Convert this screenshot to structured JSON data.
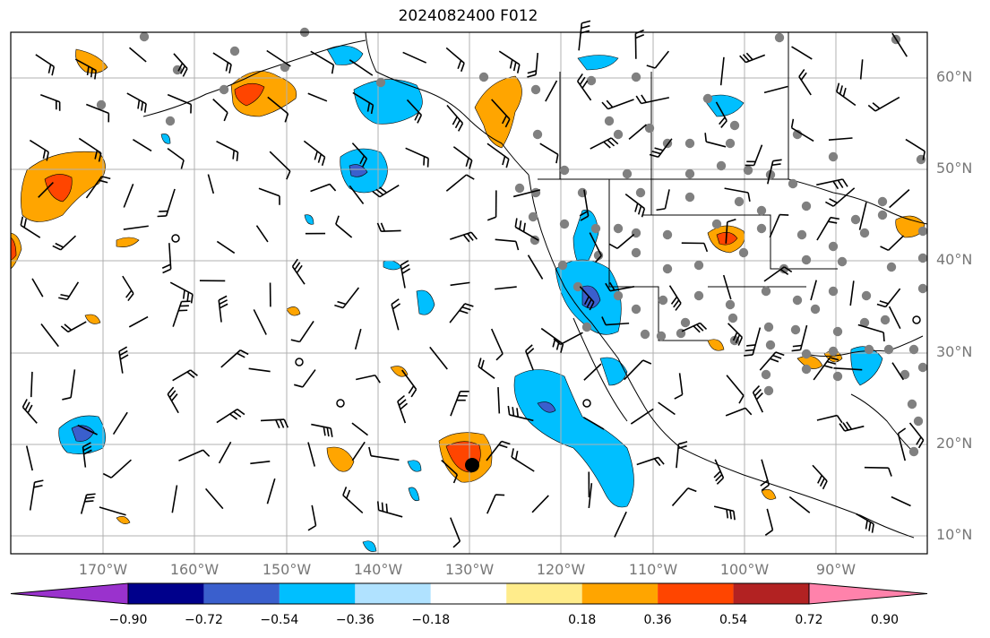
{
  "title": "2024082400 F012",
  "lat_labels": [
    "60°N",
    "50°N",
    "40°N",
    "30°N",
    "20°N",
    "10°N"
  ],
  "lon_labels": [
    "170°W",
    "160°W",
    "150°W",
    "140°W",
    "130°W",
    "120°W",
    "110°W",
    "100°W",
    "90°W"
  ],
  "colorbar": {
    "labels": [
      "−0.90",
      "−0.72",
      "−0.54",
      "−0.36",
      "−0.18",
      "0.18",
      "0.36",
      "0.54",
      "0.72",
      "0.90"
    ],
    "colors": [
      "#9a32cd",
      "#00008b",
      "#3a5fcd",
      "#00bfff",
      "#b0e2ff",
      "#ffffff",
      "#ffec8b",
      "#ffa500",
      "#ff4500",
      "#b22222",
      "#ff82ab"
    ]
  },
  "colors": {
    "frame": "#000000",
    "grid": "#b0b0b0",
    "coast": "#000000",
    "station_dot": "#808080",
    "barb": "#000000"
  }
}
